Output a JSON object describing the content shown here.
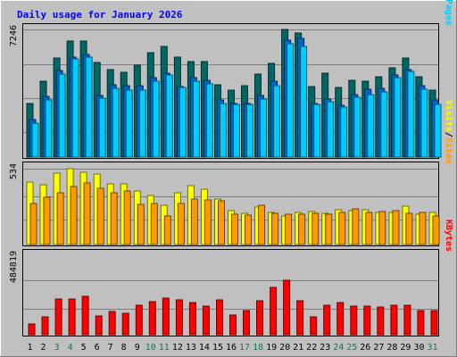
{
  "chart_data": {
    "type": "bar",
    "title": "Daily usage for January 2026",
    "categories": [
      "1",
      "2",
      "3",
      "4",
      "5",
      "6",
      "7",
      "8",
      "9",
      "10",
      "11",
      "12",
      "13",
      "14",
      "15",
      "16",
      "17",
      "18",
      "19",
      "20",
      "21",
      "22",
      "23",
      "24",
      "25",
      "26",
      "27",
      "28",
      "29",
      "30",
      "31"
    ],
    "weekend_days": [
      "3",
      "4",
      "10",
      "11",
      "17",
      "18",
      "24",
      "25",
      "31"
    ],
    "panels": [
      {
        "ymax_label": "7246",
        "ymax": 7246,
        "series": [
          {
            "name": "Hits",
            "color": "#006666",
            "values": [
              3050,
              4290,
              5600,
              6590,
              6580,
              5350,
              4980,
              4810,
              5230,
              5930,
              6270,
              5690,
              5420,
              5400,
              4100,
              3800,
              4050,
              4690,
              5300,
              7246,
              7050,
              4010,
              4740,
              3950,
              4360,
              4300,
              4580,
              5060,
              5600,
              4580,
              3800
            ]
          },
          {
            "name": "Files",
            "color": "#0066cc",
            "values": [
              2120,
              3430,
              4930,
              5670,
              5840,
              3500,
              4100,
              4050,
              4060,
              4510,
              4770,
              3990,
              4500,
              4380,
              3250,
              3020,
              3020,
              3520,
              4300,
              6650,
              6720,
              3020,
              3270,
              2960,
              3540,
              3830,
              3920,
              4650,
              4960,
              4060,
              3230
            ]
          },
          {
            "name": "Pages",
            "color": "#00ccff",
            "values": [
              1920,
              3240,
              4710,
              5570,
              5650,
              3320,
              3880,
              3810,
              3780,
              4320,
              4650,
              3960,
              4300,
              4150,
              3060,
              2980,
              2980,
              3310,
              4040,
              6460,
              6260,
              2980,
              3130,
              2830,
              3390,
              3570,
              3710,
              4510,
              4880,
              3870,
              2980
            ]
          }
        ],
        "legend": [
          "Hits",
          "/",
          "Files",
          "/",
          "Pages"
        ],
        "legend_colors": [
          "#006666",
          "#000000",
          "#0066cc",
          "#000000",
          "#00ccff"
        ]
      },
      {
        "ymax_label": "534",
        "ymax": 534,
        "series": [
          {
            "name": "Visits",
            "color": "#ffff00",
            "values": [
              440,
              418,
              502,
              534,
              509,
              496,
              427,
              427,
              376,
              346,
              278,
              362,
              416,
              387,
              320,
              237,
              221,
              265,
              227,
              202,
              229,
              233,
              222,
              242,
              237,
              244,
              227,
              227,
              272,
              212,
              229
            ]
          },
          {
            "name": "Sites",
            "color": "#ff9900",
            "values": [
              292,
              336,
              367,
              409,
              431,
              398,
              366,
              376,
              283,
              291,
              203,
              290,
              321,
              317,
              309,
              214,
              210,
              274,
              218,
              211,
              212,
              223,
              215,
              225,
              250,
              227,
              232,
              237,
              218,
              228,
              200
            ]
          }
        ],
        "legend": [
          "Visits",
          "/",
          "Sites"
        ],
        "legend_colors": [
          "#ffff00",
          "#000000",
          "#ff9900"
        ]
      },
      {
        "ymax_label": "484819",
        "ymax": 484819,
        "series": [
          {
            "name": "KBytes",
            "color": "#ff0000",
            "values": [
              99000,
              161000,
              315000,
              321000,
              341000,
              166000,
              209000,
              190000,
              259000,
              295000,
              323000,
              306000,
              287000,
              252000,
              308000,
              176000,
              212000,
              303000,
              423000,
              484819,
              305000,
              161000,
              264000,
              285000,
              252000,
              252000,
              247000,
              262000,
              265000,
              211000,
              216000
            ]
          }
        ],
        "legend": [
          "KBytes"
        ],
        "legend_colors": [
          "#ff0000"
        ]
      }
    ]
  }
}
